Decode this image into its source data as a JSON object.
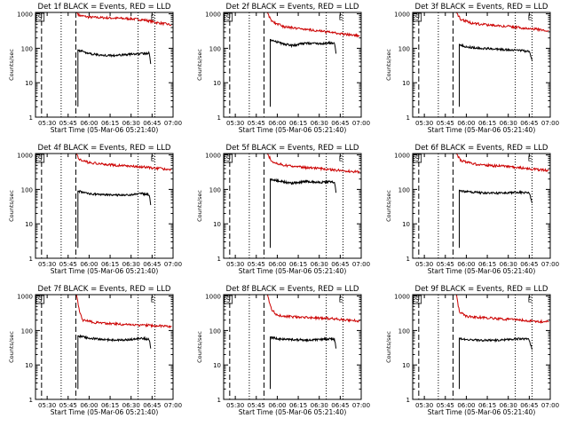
{
  "chart_data": [
    {
      "type": "line",
      "title": "Det 1f BLACK = Events, RED = LLD",
      "xlabel": "Start Time (05-Mar-06 05:21:40)",
      "ylabel": "Counts/sec",
      "x_ticks": [
        "05:30",
        "05:45",
        "06:00",
        "06:15",
        "06:30",
        "06:45",
        "07:00"
      ],
      "y_ticks": [
        "1",
        "10",
        "100",
        "1000"
      ],
      "yscale": "log",
      "ylim": [
        1,
        1100
      ],
      "xlim": [
        "05:21:40",
        "07:00:00"
      ],
      "markers": {
        "start_label": "S",
        "end_label": "E"
      },
      "series": [
        {
          "name": "LLD",
          "color": "#cc0000",
          "points": [
            [
              "05:51:00",
              1100
            ],
            [
              "05:53:00",
              900
            ],
            [
              "06:00:00",
              800
            ],
            [
              "06:15:00",
              760
            ],
            [
              "06:30:00",
              720
            ],
            [
              "06:40:00",
              660
            ],
            [
              "06:48:00",
              560
            ],
            [
              "06:56:00",
              500
            ],
            [
              "06:59:00",
              470
            ]
          ]
        },
        {
          "name": "Events",
          "color": "#000000",
          "points": [
            [
              "05:52:00",
              90
            ],
            [
              "06:00:00",
              70
            ],
            [
              "06:10:00",
              62
            ],
            [
              "06:20:00",
              62
            ],
            [
              "06:30:00",
              68
            ],
            [
              "06:40:00",
              70
            ],
            [
              "06:43:00",
              72
            ],
            [
              "06:44:00",
              35
            ]
          ]
        }
      ]
    },
    {
      "type": "line",
      "title": "Det 2f BLACK = Events, RED = LLD",
      "xlabel": "Start Time (05-Mar-06 05:21:40)",
      "ylabel": "Counts/sec",
      "x_ticks": [
        "05:30",
        "05:45",
        "06:00",
        "06:15",
        "06:30",
        "06:45",
        "07:00"
      ],
      "y_ticks": [
        "1",
        "10",
        "100",
        "1000"
      ],
      "yscale": "log",
      "ylim": [
        1,
        1100
      ],
      "xlim": [
        "05:21:40",
        "07:00:00"
      ],
      "markers": {
        "start_label": "S",
        "end_label": "E"
      },
      "series": [
        {
          "name": "LLD",
          "color": "#cc0000",
          "points": [
            [
              "05:53:00",
              1100
            ],
            [
              "05:56:00",
              600
            ],
            [
              "06:05:00",
              420
            ],
            [
              "06:15:00",
              380
            ],
            [
              "06:30:00",
              320
            ],
            [
              "06:40:00",
              280
            ],
            [
              "06:50:00",
              250
            ],
            [
              "06:59:00",
              230
            ]
          ]
        },
        {
          "name": "Events",
          "color": "#000000",
          "points": [
            [
              "05:55:00",
              180
            ],
            [
              "06:00:00",
              150
            ],
            [
              "06:10:00",
              120
            ],
            [
              "06:20:00",
              140
            ],
            [
              "06:30:00",
              135
            ],
            [
              "06:38:00",
              145
            ],
            [
              "06:41:00",
              140
            ],
            [
              "06:42:00",
              70
            ]
          ]
        }
      ]
    },
    {
      "type": "line",
      "title": "Det 3f BLACK = Events, RED = LLD",
      "xlabel": "Start Time (05-Mar-06 05:21:40)",
      "ylabel": "Counts/sec",
      "x_ticks": [
        "05:30",
        "05:45",
        "06:00",
        "06:15",
        "06:30",
        "06:45",
        "07:00"
      ],
      "y_ticks": [
        "1",
        "10",
        "100",
        "1000"
      ],
      "yscale": "log",
      "ylim": [
        1,
        1100
      ],
      "xlim": [
        "05:21:40",
        "07:00:00"
      ],
      "markers": {
        "start_label": "S",
        "end_label": "E"
      },
      "series": [
        {
          "name": "LLD",
          "color": "#cc0000",
          "points": [
            [
              "05:53:00",
              1100
            ],
            [
              "05:56:00",
              700
            ],
            [
              "06:05:00",
              520
            ],
            [
              "06:15:00",
              480
            ],
            [
              "06:30:00",
              430
            ],
            [
              "06:40:00",
              390
            ],
            [
              "06:50:00",
              360
            ],
            [
              "06:59:00",
              320
            ]
          ]
        },
        {
          "name": "Events",
          "color": "#000000",
          "points": [
            [
              "05:55:00",
              130
            ],
            [
              "06:00:00",
              110
            ],
            [
              "06:10:00",
              100
            ],
            [
              "06:20:00",
              95
            ],
            [
              "06:30:00",
              90
            ],
            [
              "06:40:00",
              85
            ],
            [
              "06:45:00",
              80
            ],
            [
              "06:47:00",
              45
            ]
          ]
        }
      ]
    },
    {
      "type": "line",
      "title": "Det 4f BLACK = Events, RED = LLD",
      "xlabel": "Start Time (05-Mar-06 05:21:40)",
      "ylabel": "Counts/sec",
      "x_ticks": [
        "05:30",
        "05:45",
        "06:00",
        "06:15",
        "06:30",
        "06:45",
        "07:00"
      ],
      "y_ticks": [
        "1",
        "10",
        "100",
        "1000"
      ],
      "yscale": "log",
      "ylim": [
        1,
        1100
      ],
      "xlim": [
        "05:21:40",
        "07:00:00"
      ],
      "markers": {
        "start_label": "S",
        "end_label": "E"
      },
      "series": [
        {
          "name": "LLD",
          "color": "#cc0000",
          "points": [
            [
              "05:51:00",
              1100
            ],
            [
              "05:53:00",
              750
            ],
            [
              "06:00:00",
              600
            ],
            [
              "06:10:00",
              540
            ],
            [
              "06:20:00",
              500
            ],
            [
              "06:30:00",
              470
            ],
            [
              "06:40:00",
              440
            ],
            [
              "06:50:00",
              400
            ],
            [
              "06:59:00",
              380
            ]
          ]
        },
        {
          "name": "Events",
          "color": "#000000",
          "points": [
            [
              "05:52:00",
              90
            ],
            [
              "06:00:00",
              75
            ],
            [
              "06:10:00",
              70
            ],
            [
              "06:20:00",
              68
            ],
            [
              "06:30:00",
              70
            ],
            [
              "06:38:00",
              75
            ],
            [
              "06:43:00",
              70
            ],
            [
              "06:44:00",
              35
            ]
          ]
        }
      ]
    },
    {
      "type": "line",
      "title": "Det 5f BLACK = Events, RED = LLD",
      "xlabel": "Start Time (05-Mar-06 05:21:40)",
      "ylabel": "Counts/sec",
      "x_ticks": [
        "05:30",
        "05:45",
        "06:00",
        "06:15",
        "06:30",
        "06:45",
        "07:00"
      ],
      "y_ticks": [
        "1",
        "10",
        "100",
        "1000"
      ],
      "yscale": "log",
      "ylim": [
        1,
        1100
      ],
      "xlim": [
        "05:21:40",
        "07:00:00"
      ],
      "markers": {
        "start_label": "S",
        "end_label": "E"
      },
      "series": [
        {
          "name": "LLD",
          "color": "#cc0000",
          "points": [
            [
              "05:53:00",
              1100
            ],
            [
              "05:56:00",
              650
            ],
            [
              "06:05:00",
              500
            ],
            [
              "06:15:00",
              450
            ],
            [
              "06:30:00",
              400
            ],
            [
              "06:40:00",
              370
            ],
            [
              "06:50:00",
              340
            ],
            [
              "06:59:00",
              320
            ]
          ]
        },
        {
          "name": "Events",
          "color": "#000000",
          "points": [
            [
              "05:55:00",
              200
            ],
            [
              "06:00:00",
              180
            ],
            [
              "06:10:00",
              150
            ],
            [
              "06:20:00",
              170
            ],
            [
              "06:30:00",
              160
            ],
            [
              "06:38:00",
              165
            ],
            [
              "06:41:00",
              160
            ],
            [
              "06:42:00",
              80
            ]
          ]
        }
      ]
    },
    {
      "type": "line",
      "title": "Det 6f BLACK = Events, RED = LLD",
      "xlabel": "Start Time (05-Mar-06 05:21:40)",
      "ylabel": "Counts/sec",
      "x_ticks": [
        "05:30",
        "05:45",
        "06:00",
        "06:15",
        "06:30",
        "06:45",
        "07:00"
      ],
      "y_ticks": [
        "1",
        "10",
        "100",
        "1000"
      ],
      "yscale": "log",
      "ylim": [
        1,
        1100
      ],
      "xlim": [
        "05:21:40",
        "07:00:00"
      ],
      "markers": {
        "start_label": "S",
        "end_label": "E"
      },
      "series": [
        {
          "name": "LLD",
          "color": "#cc0000",
          "points": [
            [
              "05:53:00",
              1100
            ],
            [
              "05:56:00",
              700
            ],
            [
              "06:05:00",
              550
            ],
            [
              "06:15:00",
              500
            ],
            [
              "06:30:00",
              460
            ],
            [
              "06:40:00",
              420
            ],
            [
              "06:50:00",
              380
            ],
            [
              "06:59:00",
              360
            ]
          ]
        },
        {
          "name": "Events",
          "color": "#000000",
          "points": [
            [
              "05:55:00",
              95
            ],
            [
              "06:00:00",
              85
            ],
            [
              "06:10:00",
              80
            ],
            [
              "06:20:00",
              78
            ],
            [
              "06:30:00",
              80
            ],
            [
              "06:40:00",
              82
            ],
            [
              "06:45:00",
              80
            ],
            [
              "06:47:00",
              40
            ]
          ]
        }
      ]
    },
    {
      "type": "line",
      "title": "Det 7f BLACK = Events, RED = LLD",
      "xlabel": "Start Time (05-Mar-06 05:21:40)",
      "ylabel": "Counts/sec",
      "x_ticks": [
        "05:30",
        "05:45",
        "06:00",
        "06:15",
        "06:30",
        "06:45",
        "07:00"
      ],
      "y_ticks": [
        "1",
        "10",
        "100",
        "1000"
      ],
      "yscale": "log",
      "ylim": [
        1,
        1100
      ],
      "xlim": [
        "05:21:40",
        "07:00:00"
      ],
      "markers": {
        "start_label": "S",
        "end_label": "E"
      },
      "series": [
        {
          "name": "LLD",
          "color": "#cc0000",
          "points": [
            [
              "05:51:00",
              1100
            ],
            [
              "05:53:00",
              400
            ],
            [
              "05:55:00",
              200
            ],
            [
              "06:05:00",
              170
            ],
            [
              "06:15:00",
              160
            ],
            [
              "06:25:00",
              150
            ],
            [
              "06:35:00",
              145
            ],
            [
              "06:45:00",
              140
            ],
            [
              "06:55:00",
              135
            ],
            [
              "06:59:00",
              130
            ]
          ]
        },
        {
          "name": "Events",
          "color": "#000000",
          "points": [
            [
              "05:52:00",
              70
            ],
            [
              "06:00:00",
              60
            ],
            [
              "06:10:00",
              55
            ],
            [
              "06:20:00",
              52
            ],
            [
              "06:30:00",
              55
            ],
            [
              "06:38:00",
              60
            ],
            [
              "06:43:00",
              55
            ],
            [
              "06:44:00",
              30
            ]
          ]
        }
      ]
    },
    {
      "type": "line",
      "title": "Det 8f BLACK = Events, RED = LLD",
      "xlabel": "Start Time (05-Mar-06 05:21:40)",
      "ylabel": "Counts/sec",
      "x_ticks": [
        "05:30",
        "05:45",
        "06:00",
        "06:15",
        "06:30",
        "06:45",
        "07:00"
      ],
      "y_ticks": [
        "1",
        "10",
        "100",
        "1000"
      ],
      "yscale": "log",
      "ylim": [
        1,
        1100
      ],
      "xlim": [
        "05:21:40",
        "07:00:00"
      ],
      "markers": {
        "start_label": "S",
        "end_label": "E"
      },
      "series": [
        {
          "name": "LLD",
          "color": "#cc0000",
          "points": [
            [
              "05:53:00",
              1100
            ],
            [
              "05:56:00",
              400
            ],
            [
              "06:00:00",
              280
            ],
            [
              "06:10:00",
              250
            ],
            [
              "06:20:00",
              240
            ],
            [
              "06:30:00",
              230
            ],
            [
              "06:40:00",
              220
            ],
            [
              "06:50:00",
              200
            ],
            [
              "06:59:00",
              190
            ]
          ]
        },
        {
          "name": "Events",
          "color": "#000000",
          "points": [
            [
              "05:55:00",
              65
            ],
            [
              "06:00:00",
              58
            ],
            [
              "06:10:00",
              55
            ],
            [
              "06:20:00",
              53
            ],
            [
              "06:30:00",
              55
            ],
            [
              "06:38:00",
              58
            ],
            [
              "06:41:00",
              55
            ],
            [
              "06:42:00",
              30
            ]
          ]
        }
      ]
    },
    {
      "type": "line",
      "title": "Det 9f BLACK = Events, RED = LLD",
      "xlabel": "Start Time (05-Mar-06 05:21:40)",
      "ylabel": "Counts/sec",
      "x_ticks": [
        "05:30",
        "05:45",
        "06:00",
        "06:15",
        "06:30",
        "06:45",
        "07:00"
      ],
      "y_ticks": [
        "1",
        "10",
        "100",
        "1000"
      ],
      "yscale": "log",
      "ylim": [
        1,
        1100
      ],
      "xlim": [
        "05:21:40",
        "07:00:00"
      ],
      "markers": {
        "start_label": "S",
        "end_label": "E"
      },
      "series": [
        {
          "name": "LLD",
          "color": "#cc0000",
          "points": [
            [
              "05:53:00",
              1100
            ],
            [
              "05:55:00",
              350
            ],
            [
              "06:00:00",
              260
            ],
            [
              "06:10:00",
              240
            ],
            [
              "06:20:00",
              225
            ],
            [
              "06:30:00",
              210
            ],
            [
              "06:40:00",
              200
            ],
            [
              "06:50:00",
              185
            ],
            [
              "06:59:00",
              180
            ]
          ]
        },
        {
          "name": "Events",
          "color": "#000000",
          "points": [
            [
              "05:55:00",
              60
            ],
            [
              "06:00:00",
              55
            ],
            [
              "06:10:00",
              52
            ],
            [
              "06:20:00",
              52
            ],
            [
              "06:30:00",
              55
            ],
            [
              "06:40:00",
              58
            ],
            [
              "06:45:00",
              55
            ],
            [
              "06:47:00",
              28
            ]
          ]
        }
      ]
    }
  ]
}
